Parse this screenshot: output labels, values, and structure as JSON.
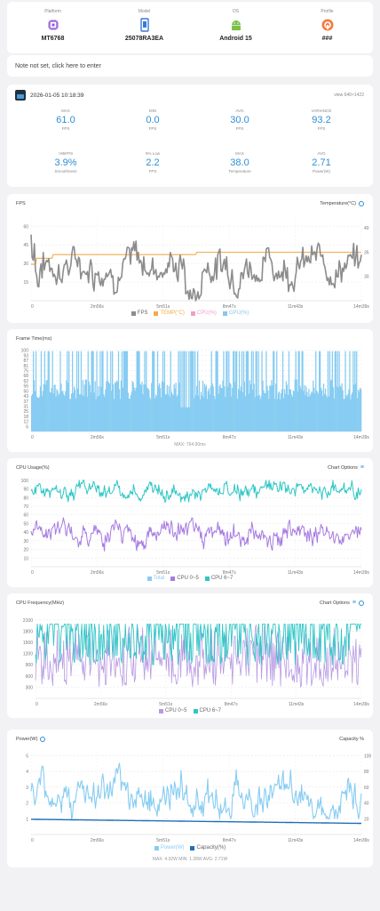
{
  "device": {
    "platform": {
      "label": "Platform",
      "value": "MT6768",
      "icon": "chip-icon"
    },
    "model": {
      "label": "Model",
      "value": "25078RA3EA",
      "icon": "phone-icon"
    },
    "os": {
      "label": "OS",
      "value": "Android 15",
      "icon": "android-icon"
    },
    "profile": {
      "label": "Profile",
      "value": "###",
      "icon": "profile-icon"
    }
  },
  "note": "Note not set, click here to enter",
  "session": {
    "timestamp": "2026-01-05 10:18:39",
    "resolution": "view 640×1422"
  },
  "stats": [
    {
      "label": "MAX",
      "value": "61.0",
      "unit": "FPS"
    },
    {
      "label": "MIN",
      "value": "0.0",
      "unit": "FPS"
    },
    {
      "label": "AVG",
      "value": "30.0",
      "unit": "FPS"
    },
    {
      "label": "VARIANCE",
      "value": "93.2",
      "unit": "FPS"
    },
    {
      "label": ">85FPS",
      "value": "3.9%",
      "unit": "Smoothness"
    },
    {
      "label": "5% Low",
      "value": "2.2",
      "unit": "FPS"
    },
    {
      "label": "MAX",
      "value": "38.0",
      "unit": "Temperature"
    },
    {
      "label": "AVG",
      "value": "2.71",
      "unit": "Power(W)"
    }
  ],
  "x_ticks": [
    "0",
    "2m56s",
    "5m51s",
    "8m47s",
    "11m43s",
    "14m39s"
  ],
  "fps_chart": {
    "title": "FPS",
    "right_label": "Temperature(°C)",
    "y_ticks": [
      "15",
      "30",
      "45",
      "60"
    ],
    "y2_ticks": [
      "30",
      "35",
      "40"
    ],
    "legend": [
      "FPS",
      "TEMP(°C)",
      "CPU(%)",
      "GPU(%)"
    ],
    "colors": {
      "fps": "#8c8c8c",
      "temp": "#f5a94a",
      "cpu": "#f0a0c8",
      "gpu": "#8fc4ec"
    }
  },
  "frame_chart": {
    "title": "Frame Time(ms)",
    "y_ticks": [
      "6",
      "12",
      "18",
      "25",
      "31",
      "37",
      "43",
      "50",
      "56",
      "62",
      "68",
      "75",
      "81",
      "87",
      "93",
      "100"
    ],
    "caption": "MAX: 764.90ms",
    "color": "#87ccf2"
  },
  "cpu_usage_chart": {
    "title": "CPU Usage(%)",
    "right_label": "Chart Options",
    "y_ticks": [
      "10",
      "20",
      "30",
      "40",
      "50",
      "60",
      "70",
      "80",
      "90",
      "100"
    ],
    "legend": [
      "Total",
      "CPU 0~5",
      "CPU 6~7"
    ],
    "colors": {
      "total": "#87ccf2",
      "little": "#a67be0",
      "big": "#2ec6c6"
    }
  },
  "cpu_freq_chart": {
    "title": "CPU Frequency(MHz)",
    "right_label": "Chart Options",
    "y_ticks": [
      "300",
      "600",
      "900",
      "1200",
      "1500",
      "1800",
      "2100"
    ],
    "legend": [
      "CPU 0~5",
      "CPU 6~7"
    ],
    "colors": {
      "little": "#b79ae3",
      "big": "#2ec6c6"
    }
  },
  "power_chart": {
    "title": "Power(W)",
    "right_label": "Capacity %",
    "y_ticks": [
      "1",
      "2",
      "3",
      "4",
      "5"
    ],
    "y2_ticks": [
      "20",
      "40",
      "60",
      "80",
      "100"
    ],
    "legend": [
      "Power(W)",
      "Capacity(%)"
    ],
    "caption": "MAX: 4.92W    MIN: 1.28W    AVG: 2.71W",
    "colors": {
      "power": "#87ccf2",
      "capacity": "#1f6fb8"
    }
  }
}
